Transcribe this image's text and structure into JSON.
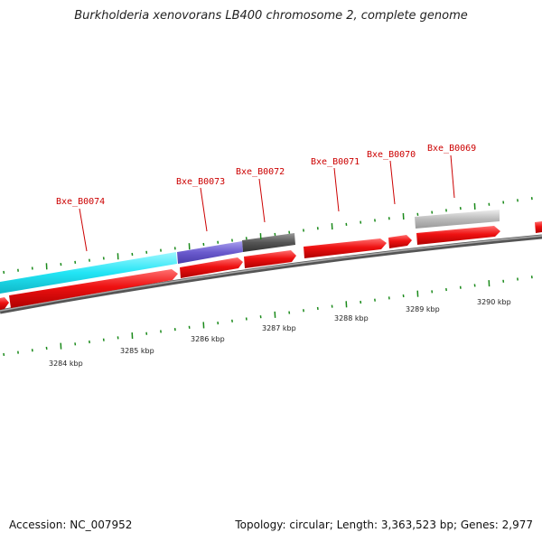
{
  "title": "Burkholderia xenovorans LB400 chromosome 2, complete genome",
  "accession": "Accession: NC_007952",
  "summary": "Topology: circular; Length: 3,363,523 bp; Genes: 2,977",
  "gene_labels": [
    "Bxe_B0074",
    "Bxe_B0073",
    "Bxe_B0072",
    "Bxe_B0071",
    "Bxe_B0070",
    "Bxe_B0069"
  ],
  "kbp_labels": [
    "3284 kbp",
    "3285 kbp",
    "3286 kbp",
    "3287 kbp",
    "3288 kbp",
    "3289 kbp",
    "3290 kbp"
  ],
  "colors": {
    "gene_forward": "#ee1111",
    "cyan_feature": "#22e5f5",
    "purple_feature": "#6a5acd",
    "dark_feature": "#555555",
    "light_feature": "#bbbbbb",
    "tick": "#1a8a1a",
    "label": "#cc0000",
    "backbone": "#777777"
  }
}
